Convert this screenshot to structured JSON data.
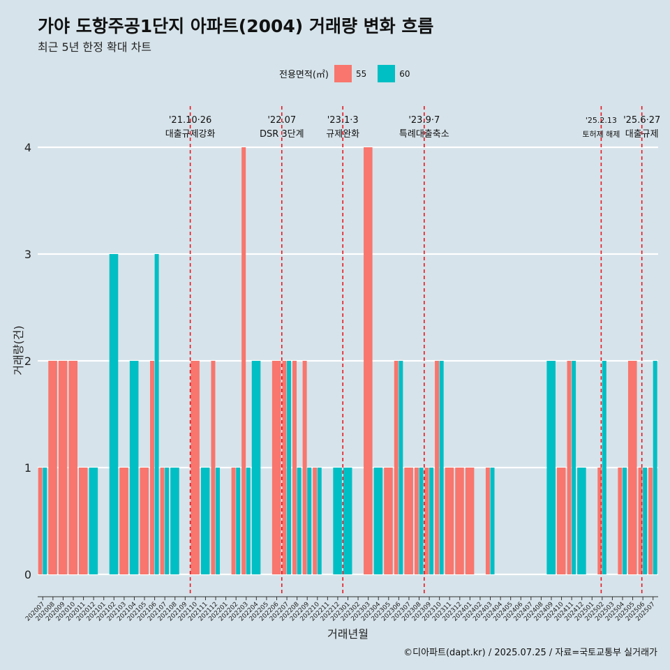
{
  "title": "가야 도항주공1단지 아파트(2004) 거래량 변화 흐름",
  "subtitle": "최근 5년 한정 확대 차트",
  "caption": "©디아파트(dapt.kr) / 2025.07.25 / 자료=국토교통부 실거래가",
  "legend": {
    "title": "전용면적(㎡)",
    "items": [
      {
        "label": "55",
        "color": "#f8766d"
      },
      {
        "label": "60",
        "color": "#00bfc4"
      }
    ]
  },
  "chart_data": {
    "type": "bar",
    "xlabel": "거래년월",
    "ylabel": "거래량(건)",
    "ylim": [
      0,
      4
    ],
    "yticks": [
      "0",
      "1",
      "2",
      "3",
      "4"
    ],
    "categories": [
      "202007",
      "202008",
      "202009",
      "202010",
      "202011",
      "202012",
      "202101",
      "202102",
      "202103",
      "202104",
      "202105",
      "202106",
      "202107",
      "202108",
      "202109",
      "202110",
      "202111",
      "202112",
      "202201",
      "202202",
      "202203",
      "202204",
      "202205",
      "202206",
      "202207",
      "202208",
      "202209",
      "202210",
      "202211",
      "202212",
      "202301",
      "202302",
      "202303",
      "202304",
      "202305",
      "202306",
      "202307",
      "202308",
      "202309",
      "202310",
      "202311",
      "202312",
      "202401",
      "202402",
      "202403",
      "202404",
      "202405",
      "202406",
      "202407",
      "202408",
      "202409",
      "202410",
      "202411",
      "202412",
      "202501",
      "202502",
      "202503",
      "202504",
      "202505",
      "202506",
      "202507"
    ],
    "series": [
      {
        "name": "55",
        "color": "#f8766d",
        "values": [
          1,
          2,
          2,
          2,
          1,
          0,
          0,
          0,
          1,
          0,
          1,
          2,
          1,
          0,
          0,
          2,
          0,
          2,
          0,
          1,
          4,
          0,
          0,
          2,
          2,
          2,
          2,
          1,
          0,
          0,
          0,
          0,
          4,
          0,
          1,
          2,
          1,
          1,
          1,
          2,
          1,
          1,
          1,
          0,
          1,
          0,
          0,
          0,
          0,
          0,
          0,
          1,
          2,
          0,
          0,
          1,
          0,
          1,
          2,
          1,
          1
        ]
      },
      {
        "name": "60",
        "color": "#00bfc4",
        "values": [
          1,
          0,
          0,
          0,
          0,
          1,
          0,
          3,
          0,
          2,
          0,
          3,
          1,
          1,
          0,
          0,
          1,
          1,
          0,
          1,
          1,
          2,
          0,
          0,
          2,
          1,
          1,
          1,
          0,
          1,
          1,
          0,
          0,
          1,
          0,
          2,
          0,
          1,
          1,
          2,
          0,
          0,
          0,
          0,
          1,
          0,
          0,
          0,
          0,
          0,
          2,
          0,
          2,
          1,
          0,
          2,
          0,
          1,
          0,
          1,
          2
        ]
      }
    ],
    "events": [
      {
        "label1": "'21.10·26",
        "label2": "대출규제강화",
        "at": 15.0
      },
      {
        "label1": "'22.07",
        "label2": "DSR 3단계",
        "at": 24.0
      },
      {
        "label1": "'23.1·3",
        "label2": "규제완화",
        "at": 30.0
      },
      {
        "label1": "'23.9·7",
        "label2": "특례대출축소",
        "at": 38.0
      },
      {
        "label1": "'25.2.13",
        "label2": "토허제 해제",
        "at": 55.4
      },
      {
        "label1": "'25.6·27",
        "label2": "대출규제",
        "at": 59.4
      }
    ]
  }
}
